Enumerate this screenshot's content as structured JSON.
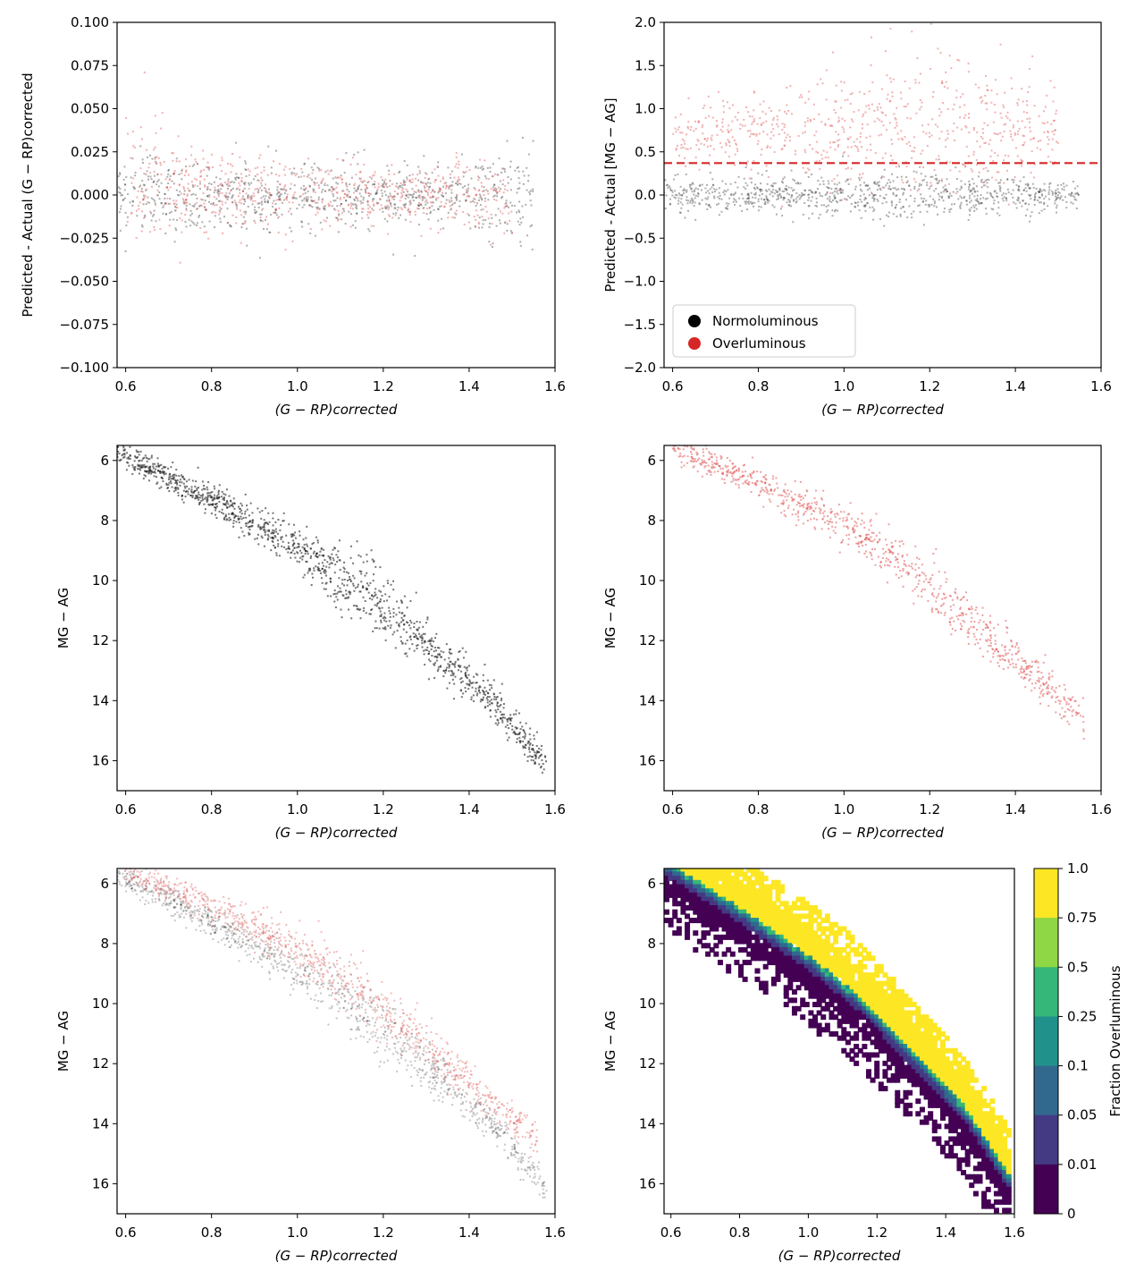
{
  "colors": {
    "normoluminous": "#1a1a1a",
    "overluminous": "#e05555",
    "dashed_line": "#d62728",
    "axis": "#000000"
  },
  "chart_data": [
    {
      "type": "scatter",
      "panel": "top-left",
      "title": "",
      "xlabel": "(G − RP)corrected",
      "ylabel": "Predicted - Actual (G − RP)corrected",
      "xlim": [
        0.58,
        1.6
      ],
      "ylim": [
        -0.1,
        0.1
      ],
      "xticks": [
        "0.6",
        "0.8",
        "1.0",
        "1.2",
        "1.4",
        "1.6"
      ],
      "xtick_values": [
        0.6,
        0.8,
        1.0,
        1.2,
        1.4,
        1.6
      ],
      "yticks": [
        "0.100",
        "0.075",
        "0.050",
        "0.025",
        "0.000",
        "−0.025",
        "−0.050",
        "−0.075",
        "−0.100"
      ],
      "ytick_values": [
        0.1,
        0.075,
        0.05,
        0.025,
        0.0,
        -0.025,
        -0.05,
        -0.075,
        -0.1
      ],
      "series": [
        {
          "name": "Normoluminous",
          "color_key": "normoluminous",
          "band": {
            "x": [
              0.58,
              0.8,
              1.0,
              1.2,
              1.4,
              1.55
            ],
            "center": [
              0,
              0,
              0,
              0,
              0,
              0
            ],
            "spread": [
              0.012,
              0.01,
              0.009,
              0.008,
              0.01,
              0.015
            ]
          }
        },
        {
          "name": "Overluminous",
          "color_key": "overluminous",
          "band": {
            "x": [
              0.6,
              0.8,
              1.0,
              1.2,
              1.4,
              1.5
            ],
            "center": [
              0.01,
              0.003,
              0.0,
              0.0,
              0.0,
              0.0
            ],
            "spread": [
              0.02,
              0.012,
              0.01,
              0.008,
              0.01,
              0.012
            ]
          }
        }
      ]
    },
    {
      "type": "scatter",
      "panel": "top-right",
      "xlabel": "(G − RP)corrected",
      "ylabel": "Predicted - Actual [MG − AG]",
      "xlim": [
        0.58,
        1.6
      ],
      "ylim": [
        -2.0,
        2.0
      ],
      "xticks": [
        "0.6",
        "0.8",
        "1.0",
        "1.2",
        "1.4",
        "1.6"
      ],
      "xtick_values": [
        0.6,
        0.8,
        1.0,
        1.2,
        1.4,
        1.6
      ],
      "yticks": [
        "2.0",
        "1.5",
        "1.0",
        "0.5",
        "0.0",
        "−0.5",
        "−1.0",
        "−1.5",
        "−2.0"
      ],
      "ytick_values": [
        2.0,
        1.5,
        1.0,
        0.5,
        0.0,
        -0.5,
        -1.0,
        -1.5,
        -2.0
      ],
      "threshold": 0.37,
      "legend": {
        "placement": "lower-left",
        "entries": [
          "Normoluminous",
          "Overluminous"
        ]
      },
      "series": [
        {
          "name": "Normoluminous",
          "color_key": "normoluminous",
          "band": {
            "x": [
              0.58,
              0.8,
              1.0,
              1.2,
              1.4,
              1.55
            ],
            "center": [
              0,
              0,
              0,
              0,
              0,
              0
            ],
            "spread": [
              0.1,
              0.1,
              0.12,
              0.15,
              0.1,
              0.08
            ]
          }
        },
        {
          "name": "Overluminous",
          "color_key": "overluminous",
          "band": {
            "x": [
              0.6,
              0.8,
              1.0,
              1.2,
              1.4,
              1.5
            ],
            "center": [
              0.65,
              0.7,
              0.75,
              0.85,
              0.8,
              0.7
            ],
            "spread": [
              0.2,
              0.25,
              0.3,
              0.5,
              0.3,
              0.2
            ]
          }
        }
      ]
    },
    {
      "type": "scatter",
      "panel": "middle-left",
      "xlabel": "(G − RP)corrected",
      "ylabel": "MG − AG",
      "xlim": [
        0.58,
        1.6
      ],
      "ylim": [
        17,
        5.5
      ],
      "xticks": [
        "0.6",
        "0.8",
        "1.0",
        "1.2",
        "1.4",
        "1.6"
      ],
      "xtick_values": [
        0.6,
        0.8,
        1.0,
        1.2,
        1.4,
        1.6
      ],
      "yticks": [
        "6",
        "8",
        "10",
        "12",
        "14",
        "16"
      ],
      "ytick_values": [
        6,
        8,
        10,
        12,
        14,
        16
      ],
      "series": [
        {
          "name": "Normoluminous",
          "color_key": "normoluminous",
          "band": {
            "x": [
              0.58,
              0.8,
              1.0,
              1.15,
              1.3,
              1.45,
              1.58
            ],
            "center": [
              5.7,
              7.3,
              8.9,
              10.3,
              12.1,
              13.9,
              16.2
            ],
            "spread": [
              0.2,
              0.25,
              0.35,
              0.6,
              0.4,
              0.3,
              0.3
            ]
          }
        }
      ]
    },
    {
      "type": "scatter",
      "panel": "middle-right",
      "xlabel": "(G − RP)corrected",
      "ylabel": "MG − AG",
      "xlim": [
        0.58,
        1.6
      ],
      "ylim": [
        17,
        5.5
      ],
      "xticks": [
        "0.6",
        "0.8",
        "1.0",
        "1.2",
        "1.4",
        "1.6"
      ],
      "xtick_values": [
        0.6,
        0.8,
        1.0,
        1.2,
        1.4,
        1.6
      ],
      "yticks": [
        "6",
        "8",
        "10",
        "12",
        "14",
        "16"
      ],
      "ytick_values": [
        6,
        8,
        10,
        12,
        14,
        16
      ],
      "series": [
        {
          "name": "Overluminous",
          "color_key": "overluminous",
          "band": {
            "x": [
              0.6,
              0.8,
              1.0,
              1.15,
              1.3,
              1.45,
              1.56
            ],
            "center": [
              5.6,
              6.7,
              8.2,
              9.6,
              11.4,
              13.2,
              14.6
            ],
            "spread": [
              0.2,
              0.25,
              0.35,
              0.5,
              0.4,
              0.3,
              0.3
            ]
          }
        }
      ]
    },
    {
      "type": "scatter",
      "panel": "bottom-left",
      "xlabel": "(G − RP)corrected",
      "ylabel": "MG − AG",
      "xlim": [
        0.58,
        1.6
      ],
      "ylim": [
        17,
        5.5
      ],
      "xticks": [
        "0.6",
        "0.8",
        "1.0",
        "1.2",
        "1.4",
        "1.6"
      ],
      "xtick_values": [
        0.6,
        0.8,
        1.0,
        1.2,
        1.4,
        1.6
      ],
      "yticks": [
        "6",
        "8",
        "10",
        "12",
        "14",
        "16"
      ],
      "ytick_values": [
        6,
        8,
        10,
        12,
        14,
        16
      ],
      "series": [
        {
          "name": "Normoluminous",
          "color_key": "normoluminous",
          "band": {
            "x": [
              0.58,
              0.8,
              1.0,
              1.15,
              1.3,
              1.45,
              1.58
            ],
            "center": [
              5.7,
              7.3,
              8.9,
              10.3,
              12.1,
              13.9,
              16.2
            ],
            "spread": [
              0.2,
              0.25,
              0.35,
              0.6,
              0.4,
              0.3,
              0.3
            ]
          }
        },
        {
          "name": "Overluminous",
          "color_key": "overluminous",
          "band": {
            "x": [
              0.6,
              0.8,
              1.0,
              1.15,
              1.3,
              1.45,
              1.56
            ],
            "center": [
              5.6,
              6.7,
              8.2,
              9.6,
              11.4,
              13.2,
              14.6
            ],
            "spread": [
              0.2,
              0.25,
              0.35,
              0.5,
              0.4,
              0.3,
              0.3
            ]
          }
        }
      ]
    },
    {
      "type": "heatmap",
      "panel": "bottom-right",
      "xlabel": "(G − RP)corrected",
      "ylabel": "MG − AG",
      "xlim": [
        0.58,
        1.6
      ],
      "ylim": [
        17,
        5.5
      ],
      "xticks": [
        "0.6",
        "0.8",
        "1.0",
        "1.2",
        "1.4",
        "1.6"
      ],
      "xtick_values": [
        0.6,
        0.8,
        1.0,
        1.2,
        1.4,
        1.6
      ],
      "yticks": [
        "6",
        "8",
        "10",
        "12",
        "14",
        "16"
      ],
      "ytick_values": [
        6,
        8,
        10,
        12,
        14,
        16
      ],
      "colorbar": {
        "label": "Fraction Overluminous",
        "ticks": [
          "1.0",
          "0.75",
          "0.5",
          "0.25",
          "0.1",
          "0.05",
          "0.01",
          "0"
        ],
        "bins": [
          {
            "range": "0.75–1.0",
            "color": "#fde725"
          },
          {
            "range": "0.5–0.75",
            "color": "#8fd744"
          },
          {
            "range": "0.25–0.5",
            "color": "#35b779"
          },
          {
            "range": "0.1–0.25",
            "color": "#21918c"
          },
          {
            "range": "0.05–0.1",
            "color": "#31688e"
          },
          {
            "range": "0.01–0.05",
            "color": "#443983"
          },
          {
            "range": "0–0.01",
            "color": "#440154"
          }
        ]
      },
      "main_sequence": {
        "x": [
          0.58,
          0.8,
          1.0,
          1.15,
          1.3,
          1.45,
          1.58
        ],
        "center": [
          5.7,
          7.3,
          8.9,
          10.3,
          12.1,
          13.9,
          16.2
        ]
      }
    }
  ]
}
